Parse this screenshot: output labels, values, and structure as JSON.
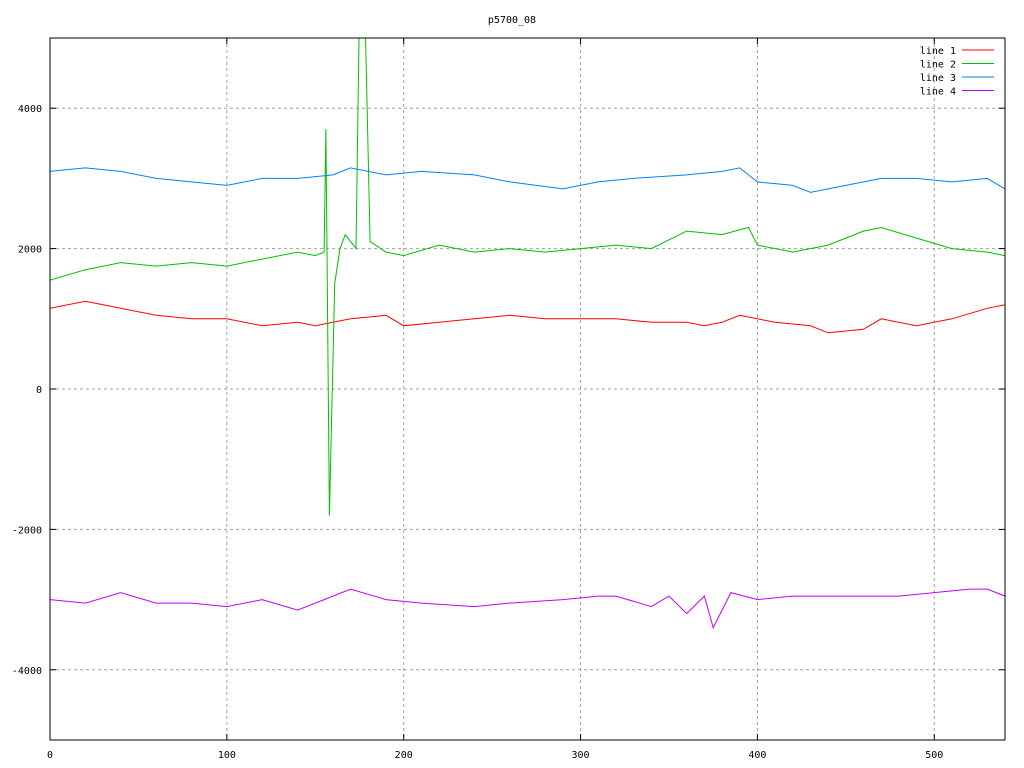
{
  "chart_data": {
    "type": "line",
    "title": "p5700_08",
    "xlabel": "",
    "ylabel": "",
    "xlim": [
      0,
      540
    ],
    "ylim": [
      -5000,
      5000
    ],
    "xticks": [
      0,
      100,
      200,
      300,
      400,
      500
    ],
    "yticks": [
      -4000,
      -2000,
      0,
      2000,
      4000
    ],
    "grid": true,
    "legend_position": "top-right",
    "series": [
      {
        "name": "line 1",
        "color": "#ff0000",
        "x": [
          0,
          20,
          40,
          60,
          80,
          100,
          120,
          140,
          150,
          170,
          190,
          200,
          220,
          240,
          260,
          280,
          300,
          320,
          340,
          360,
          370,
          380,
          390,
          410,
          430,
          440,
          460,
          470,
          490,
          510,
          530,
          540
        ],
        "y": [
          1150,
          1250,
          1150,
          1050,
          1000,
          1000,
          900,
          950,
          900,
          1000,
          1050,
          900,
          950,
          1000,
          1050,
          1000,
          1000,
          1000,
          950,
          950,
          900,
          950,
          1050,
          950,
          900,
          800,
          850,
          1000,
          900,
          1000,
          1150,
          1200
        ]
      },
      {
        "name": "line 2",
        "color": "#00c000",
        "x": [
          0,
          20,
          40,
          60,
          80,
          100,
          120,
          140,
          150,
          155,
          156,
          158,
          161,
          164,
          167,
          173,
          175,
          178,
          181,
          190,
          200,
          220,
          240,
          260,
          280,
          300,
          320,
          340,
          360,
          380,
          395,
          400,
          420,
          440,
          460,
          470,
          490,
          510,
          530,
          540
        ],
        "y": [
          1550,
          1700,
          1800,
          1750,
          1800,
          1750,
          1850,
          1950,
          1900,
          1950,
          3700,
          -1800,
          1500,
          2000,
          2200,
          2000,
          5500,
          5500,
          2100,
          1950,
          1900,
          2050,
          1950,
          2000,
          1950,
          2000,
          2050,
          2000,
          2250,
          2200,
          2300,
          2050,
          1950,
          2050,
          2250,
          2300,
          2150,
          2000,
          1950,
          1900
        ]
      },
      {
        "name": "line 3",
        "color": "#0080ff",
        "x": [
          0,
          20,
          40,
          60,
          80,
          100,
          120,
          140,
          160,
          170,
          190,
          210,
          240,
          260,
          290,
          310,
          330,
          360,
          380,
          390,
          400,
          420,
          430,
          450,
          470,
          490,
          510,
          530,
          540
        ],
        "y": [
          3100,
          3150,
          3100,
          3000,
          2950,
          2900,
          3000,
          3000,
          3050,
          3150,
          3050,
          3100,
          3050,
          2950,
          2850,
          2950,
          3000,
          3050,
          3100,
          3150,
          2950,
          2900,
          2800,
          2900,
          3000,
          3000,
          2950,
          3000,
          2850
        ]
      },
      {
        "name": "line 4",
        "color": "#c000ff",
        "x": [
          0,
          20,
          40,
          60,
          80,
          100,
          120,
          140,
          160,
          170,
          190,
          210,
          240,
          260,
          290,
          310,
          320,
          340,
          350,
          360,
          370,
          375,
          385,
          400,
          420,
          450,
          480,
          500,
          520,
          530,
          540
        ],
        "y": [
          -3000,
          -3050,
          -2900,
          -3050,
          -3050,
          -3100,
          -3000,
          -3150,
          -2950,
          -2850,
          -3000,
          -3050,
          -3100,
          -3050,
          -3000,
          -2950,
          -2950,
          -3100,
          -2950,
          -3200,
          -2950,
          -3400,
          -2900,
          -3000,
          -2950,
          -2950,
          -2950,
          -2900,
          -2850,
          -2850,
          -2950
        ]
      }
    ]
  }
}
